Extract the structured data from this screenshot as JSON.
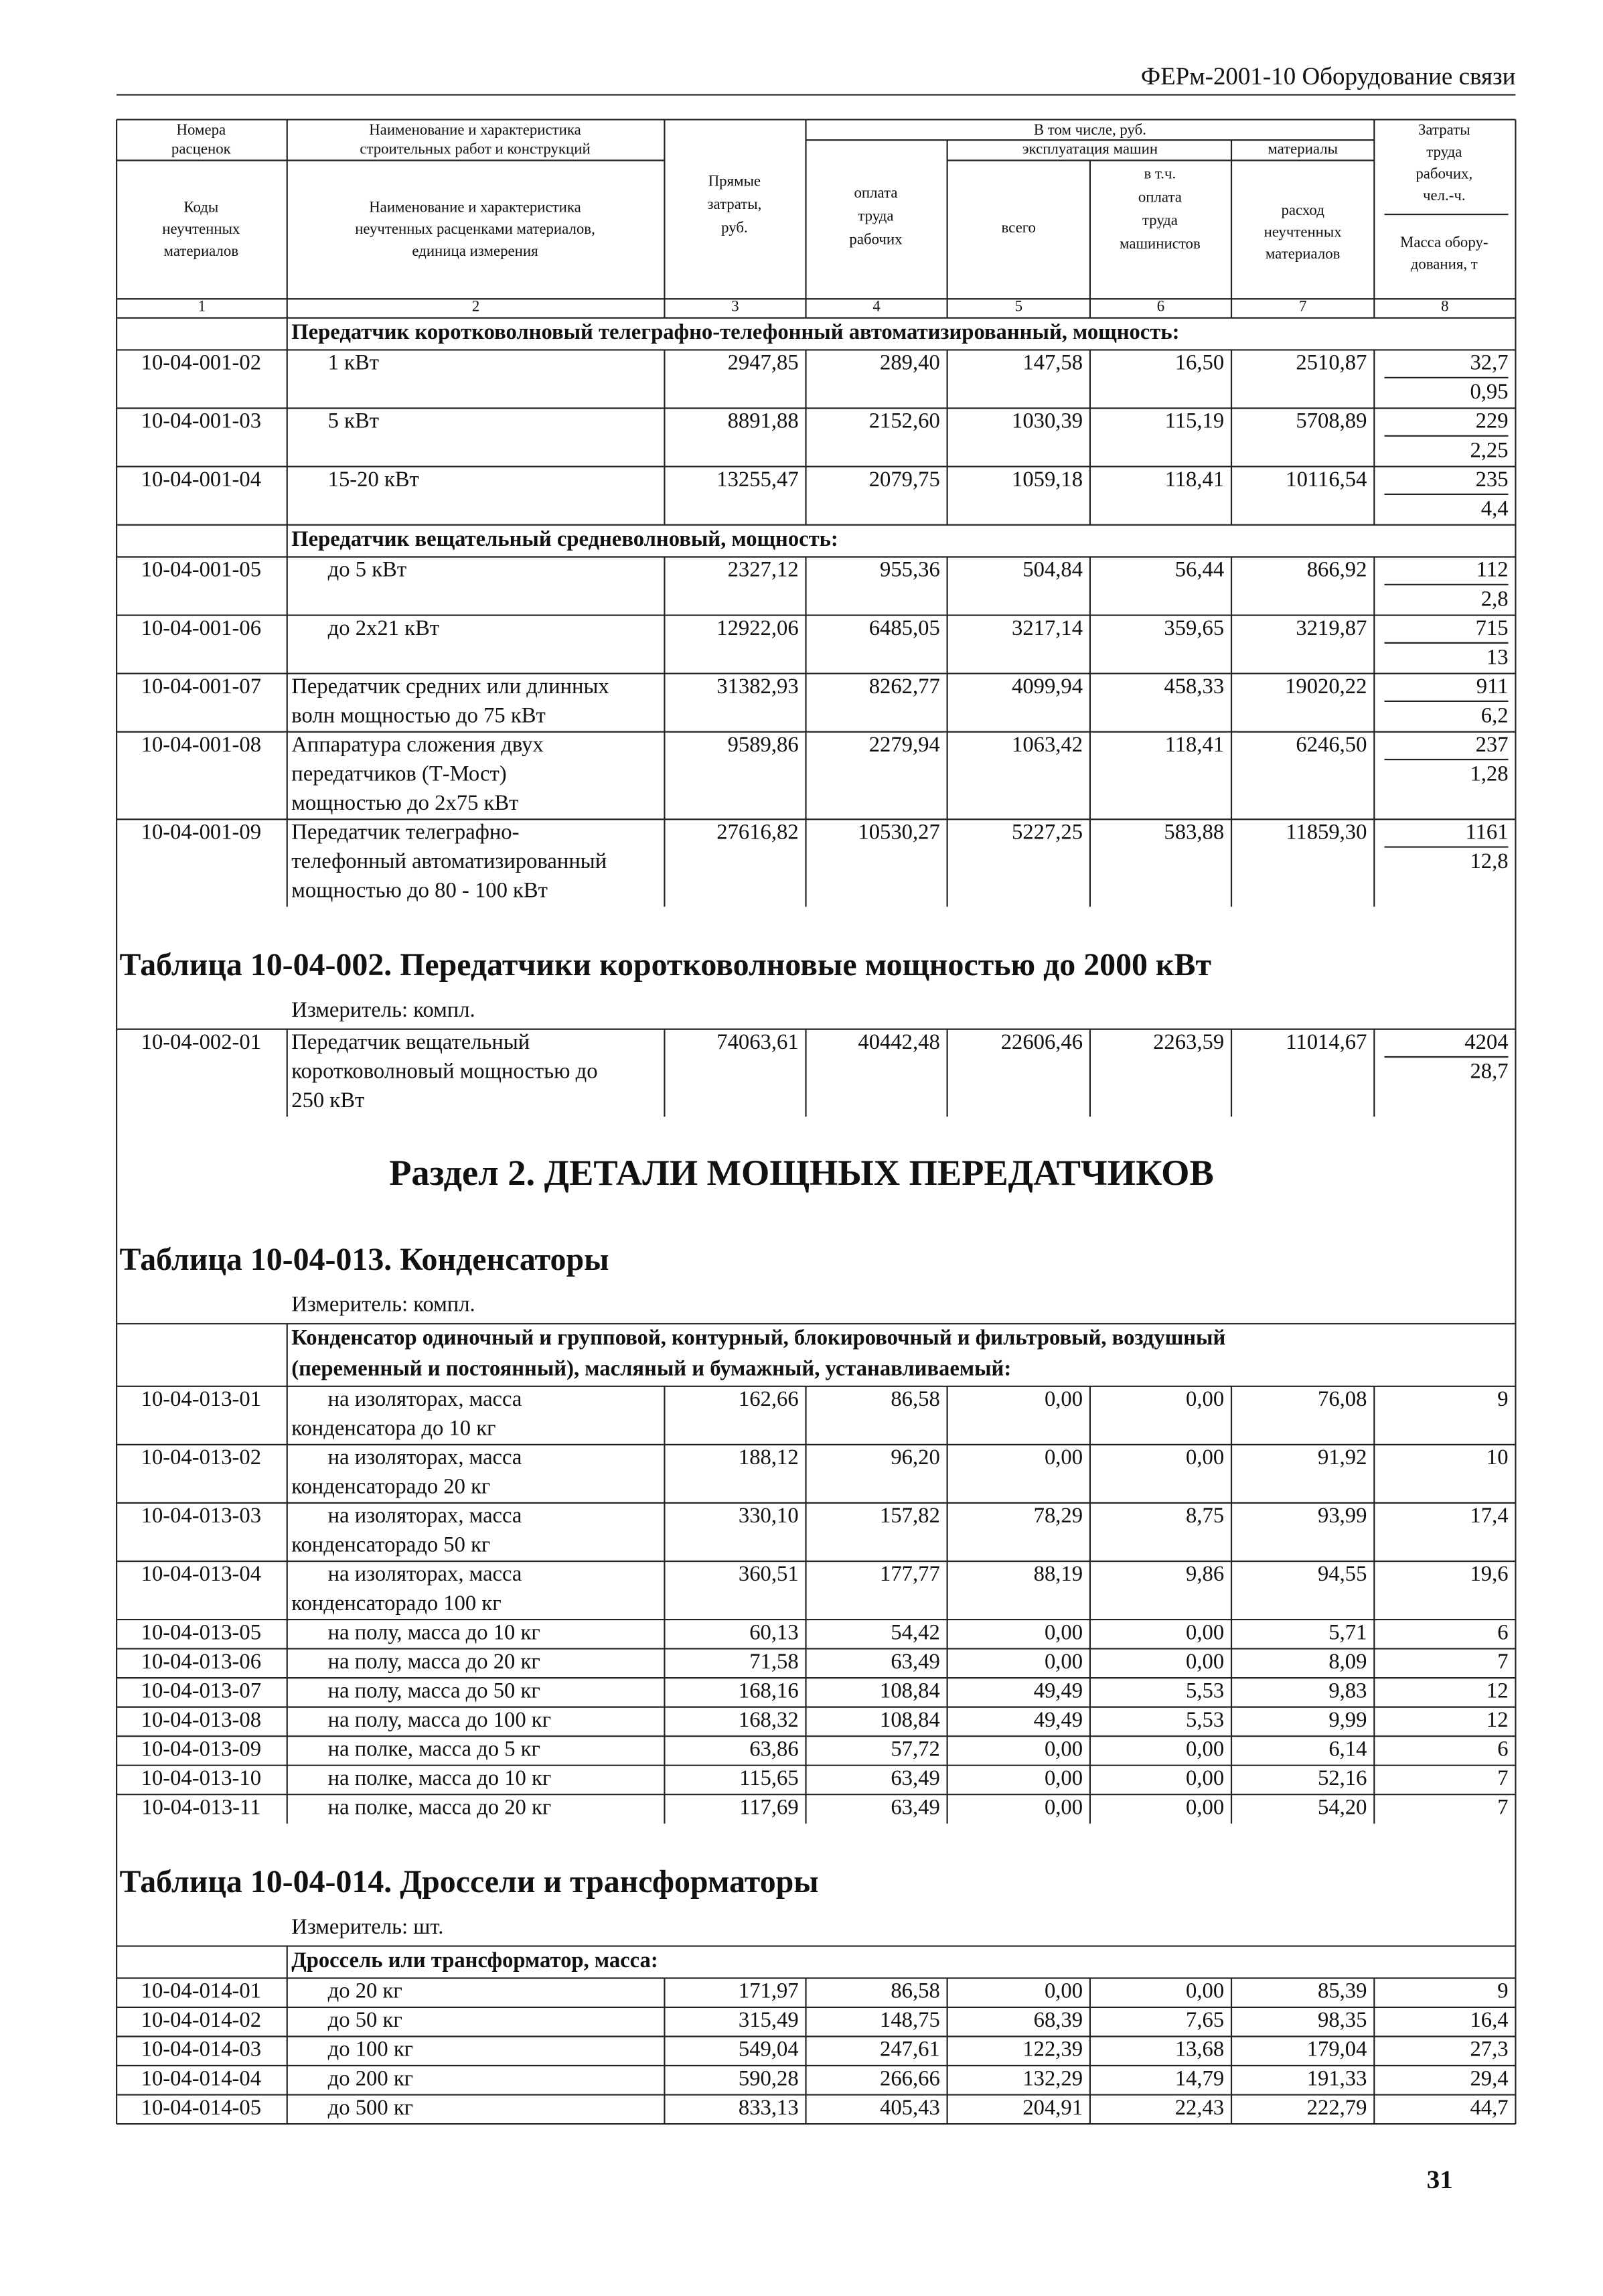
{
  "running_title": "ФЕРм-2001-10 Оборудование связи",
  "page_number": "31",
  "table_header": {
    "rate_numbers": [
      "Номера",
      "расценок"
    ],
    "material_codes": [
      "Коды",
      "неучтенных",
      "материалов"
    ],
    "work_name": [
      "Наименование и характеристика",
      "строительных работ и конструкций"
    ],
    "material_name": [
      "Наименование и характеристика",
      "неучтенных расценками материалов,",
      "единица измерения"
    ],
    "direct_costs": [
      "Прямые",
      "затраты,",
      "руб."
    ],
    "including": "В том числе, руб.",
    "machines": "эксплуатация машин",
    "materials": "материалы",
    "wages": [
      "оплата",
      "труда",
      "рабочих"
    ],
    "machines_total": "всего",
    "machinist_wages": [
      "в т.ч.",
      "оплата",
      "труда",
      "машинистов"
    ],
    "material_use": [
      "расход",
      "неучтенных",
      "материалов"
    ],
    "labor": [
      "Затраты",
      "труда",
      "рабочих,",
      "чел.-ч."
    ],
    "mass": [
      "Масса обору-",
      "дования, т"
    ],
    "column_numbers": [
      "1",
      "2",
      "3",
      "4",
      "5",
      "6",
      "7",
      "8"
    ]
  },
  "blocks": [
    {
      "group_title": [
        "Передатчик коротковолновый телеграфно-телефонный автоматизированный, мощность:"
      ],
      "rows": [
        {
          "code": "10-04-001-02",
          "name": [
            "1 кВт"
          ],
          "costs": [
            "2947,85",
            "289,40",
            "147,58",
            "16,50",
            "2510,87"
          ],
          "labor": "32,7",
          "mass": "0,95"
        },
        {
          "code": "10-04-001-03",
          "name": [
            "5 кВт"
          ],
          "costs": [
            "8891,88",
            "2152,60",
            "1030,39",
            "115,19",
            "5708,89"
          ],
          "labor": "229",
          "mass": "2,25"
        },
        {
          "code": "10-04-001-04",
          "name": [
            "15-20 кВт"
          ],
          "costs": [
            "13255,47",
            "2079,75",
            "1059,18",
            "118,41",
            "10116,54"
          ],
          "labor": "235",
          "mass": "4,4"
        }
      ]
    },
    {
      "group_title": [
        "Передатчик вещательный средневолновый, мощность:"
      ],
      "rows": [
        {
          "code": "10-04-001-05",
          "name": [
            "до 5 кВт"
          ],
          "costs": [
            "2327,12",
            "955,36",
            "504,84",
            "56,44",
            "866,92"
          ],
          "labor": "112",
          "mass": "2,8"
        },
        {
          "code": "10-04-001-06",
          "name": [
            "до 2х21 кВт"
          ],
          "costs": [
            "12922,06",
            "6485,05",
            "3217,14",
            "359,65",
            "3219,87"
          ],
          "labor": "715",
          "mass": "13"
        },
        {
          "code": "10-04-001-07",
          "name": [
            "Передатчик средних или длинных",
            "волн мощностью до 75 кВт"
          ],
          "costs": [
            "31382,93",
            "8262,77",
            "4099,94",
            "458,33",
            "19020,22"
          ],
          "labor": "911",
          "mass": "6,2"
        },
        {
          "code": "10-04-001-08",
          "name": [
            "Аппаратура сложения двух",
            "передатчиков (Т-Мост)",
            "мощностью до 2х75 кВт"
          ],
          "costs": [
            "9589,86",
            "2279,94",
            "1063,42",
            "118,41",
            "6246,50"
          ],
          "labor": "237",
          "mass": "1,28"
        },
        {
          "code": "10-04-001-09",
          "name": [
            "Передатчик телеграфно-",
            "телефонный автоматизированный",
            "мощностью до 80 - 100 кВт"
          ],
          "costs": [
            "27616,82",
            "10530,27",
            "5227,25",
            "583,88",
            "11859,30"
          ],
          "labor": "1161",
          "mass": "12,8"
        }
      ]
    },
    {
      "table_title": "Таблица 10-04-002. Передатчики коротковолновые мощностью до 2000 кВт",
      "measurer": "Измеритель: компл.",
      "rows": [
        {
          "code": "10-04-002-01",
          "name": [
            "Передатчик вещательный",
            "коротковолновый мощностью до",
            "250 кВт"
          ],
          "costs": [
            "74063,61",
            "40442,48",
            "22606,46",
            "2263,59",
            "11014,67"
          ],
          "labor": "4204",
          "mass": "28,7"
        }
      ]
    },
    {
      "section_title": "Раздел 2. ДЕТАЛИ МОЩНЫХ ПЕРЕДАТЧИКОВ",
      "table_title": "Таблица 10-04-013. Конденсаторы",
      "measurer": "Измеритель: компл.",
      "group_title": [
        "Конденсатор одиночный и групповой, контурный, блокировочный и фильтровый, воздушный",
        "(переменный и постоянный), масляный и бумажный, устанавливаемый:"
      ],
      "rows": [
        {
          "code": "10-04-013-01",
          "name": [
            "на изоляторах, масса",
            "конденсатора до 10 кг"
          ],
          "costs": [
            "162,66",
            "86,58",
            "0,00",
            "0,00",
            "76,08"
          ],
          "labor": "9"
        },
        {
          "code": "10-04-013-02",
          "name": [
            "на изоляторах, масса",
            "конденсаторадо 20 кг"
          ],
          "costs": [
            "188,12",
            "96,20",
            "0,00",
            "0,00",
            "91,92"
          ],
          "labor": "10"
        },
        {
          "code": "10-04-013-03",
          "name": [
            "на изоляторах, масса",
            "конденсаторадо 50 кг"
          ],
          "costs": [
            "330,10",
            "157,82",
            "78,29",
            "8,75",
            "93,99"
          ],
          "labor": "17,4"
        },
        {
          "code": "10-04-013-04",
          "name": [
            "на изоляторах, масса",
            "конденсаторадо 100 кг"
          ],
          "costs": [
            "360,51",
            "177,77",
            "88,19",
            "9,86",
            "94,55"
          ],
          "labor": "19,6"
        },
        {
          "code": "10-04-013-05",
          "name": [
            "на полу, масса до 10 кг"
          ],
          "costs": [
            "60,13",
            "54,42",
            "0,00",
            "0,00",
            "5,71"
          ],
          "labor": "6"
        },
        {
          "code": "10-04-013-06",
          "name": [
            "на полу, масса до 20 кг"
          ],
          "costs": [
            "71,58",
            "63,49",
            "0,00",
            "0,00",
            "8,09"
          ],
          "labor": "7"
        },
        {
          "code": "10-04-013-07",
          "name": [
            "на полу, масса до 50 кг"
          ],
          "costs": [
            "168,16",
            "108,84",
            "49,49",
            "5,53",
            "9,83"
          ],
          "labor": "12"
        },
        {
          "code": "10-04-013-08",
          "name": [
            "на полу, масса до 100 кг"
          ],
          "costs": [
            "168,32",
            "108,84",
            "49,49",
            "5,53",
            "9,99"
          ],
          "labor": "12"
        },
        {
          "code": "10-04-013-09",
          "name": [
            "на полке, масса до 5 кг"
          ],
          "costs": [
            "63,86",
            "57,72",
            "0,00",
            "0,00",
            "6,14"
          ],
          "labor": "6"
        },
        {
          "code": "10-04-013-10",
          "name": [
            "на полке, масса до 10 кг"
          ],
          "costs": [
            "115,65",
            "63,49",
            "0,00",
            "0,00",
            "52,16"
          ],
          "labor": "7"
        },
        {
          "code": "10-04-013-11",
          "name": [
            "на полке, масса до 20 кг"
          ],
          "costs": [
            "117,69",
            "63,49",
            "0,00",
            "0,00",
            "54,20"
          ],
          "labor": "7"
        }
      ]
    },
    {
      "table_title": "Таблица 10-04-014. Дроссели и трансформаторы",
      "measurer": "Измеритель: шт.",
      "group_title": [
        "Дроссель или трансформатор, масса:"
      ],
      "rows": [
        {
          "code": "10-04-014-01",
          "name": [
            "до 20 кг"
          ],
          "costs": [
            "171,97",
            "86,58",
            "0,00",
            "0,00",
            "85,39"
          ],
          "labor": "9"
        },
        {
          "code": "10-04-014-02",
          "name": [
            "до 50 кг"
          ],
          "costs": [
            "315,49",
            "148,75",
            "68,39",
            "7,65",
            "98,35"
          ],
          "labor": "16,4"
        },
        {
          "code": "10-04-014-03",
          "name": [
            "до 100 кг"
          ],
          "costs": [
            "549,04",
            "247,61",
            "122,39",
            "13,68",
            "179,04"
          ],
          "labor": "27,3"
        },
        {
          "code": "10-04-014-04",
          "name": [
            "до 200 кг"
          ],
          "costs": [
            "590,28",
            "266,66",
            "132,29",
            "14,79",
            "191,33"
          ],
          "labor": "29,4"
        },
        {
          "code": "10-04-014-05",
          "name": [
            "до 500 кг"
          ],
          "costs": [
            "833,13",
            "405,43",
            "204,91",
            "22,43",
            "222,79"
          ],
          "labor": "44,7"
        }
      ]
    }
  ]
}
